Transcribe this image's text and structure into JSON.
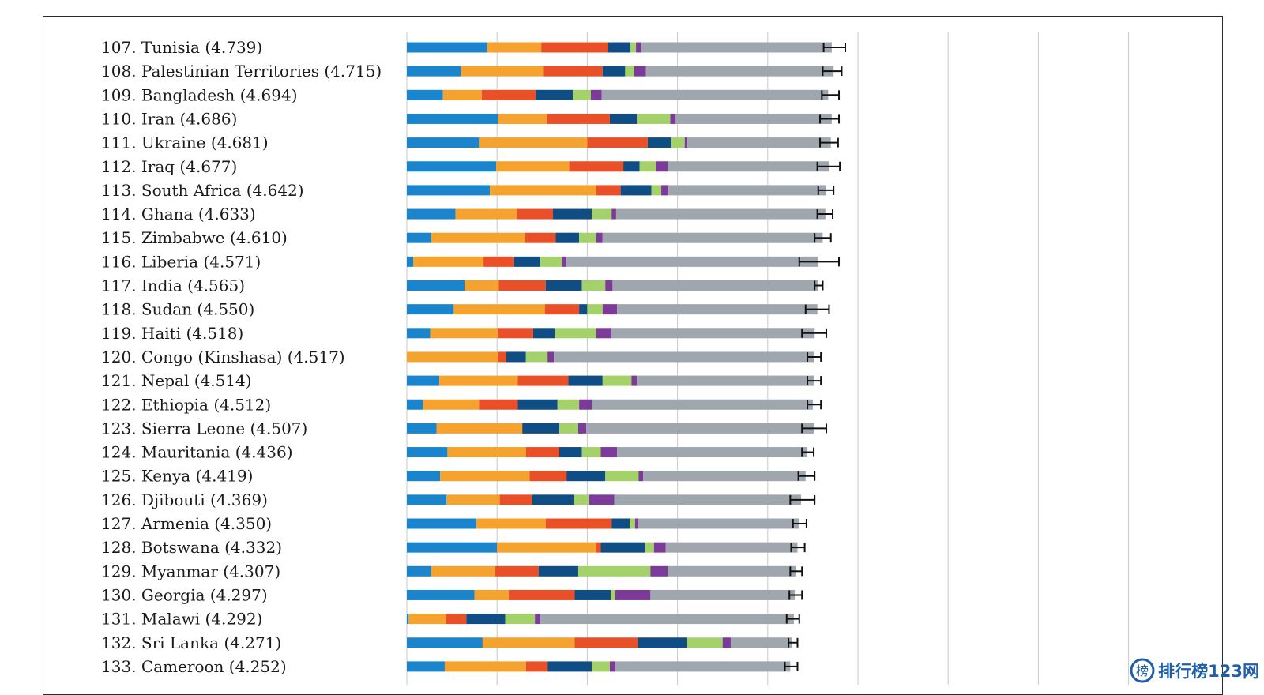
{
  "chart_data": {
    "type": "bar",
    "stacked": true,
    "orientation": "horizontal",
    "error_bars": true,
    "grid": true,
    "xlim": [
      0,
      8
    ],
    "colors": [
      "#1a85cc",
      "#f5a22e",
      "#ea5028",
      "#0f4d84",
      "#a5d16a",
      "#7d3b99",
      "#9fa6ad"
    ],
    "rows": [
      {
        "label": "107.  Tunisia (4.739)",
        "segments": [
          0.89,
          0.6,
          0.74,
          0.25,
          0.06,
          0.06,
          2.11
        ],
        "ci": [
          4.62,
          4.86
        ]
      },
      {
        "label": "108.  Palestinian Territories (4.715)",
        "segments": [
          0.6,
          0.91,
          0.66,
          0.25,
          0.1,
          0.13,
          2.08
        ],
        "ci": [
          4.61,
          4.82
        ]
      },
      {
        "label": "109.  Bangladesh (4.694)",
        "segments": [
          0.4,
          0.43,
          0.6,
          0.41,
          0.2,
          0.12,
          2.51
        ],
        "ci": [
          4.6,
          4.79
        ]
      },
      {
        "label": "110.  Iran (4.686)",
        "segments": [
          1.01,
          0.54,
          0.7,
          0.3,
          0.37,
          0.06,
          1.73
        ],
        "ci": [
          4.58,
          4.79
        ]
      },
      {
        "label": "111.  Ukraine (4.681)",
        "segments": [
          0.8,
          1.2,
          0.67,
          0.26,
          0.15,
          0.03,
          1.59
        ],
        "ci": [
          4.58,
          4.78
        ]
      },
      {
        "label": "112.  Iraq (4.677)",
        "segments": [
          0.99,
          0.81,
          0.6,
          0.18,
          0.18,
          0.13,
          1.79
        ],
        "ci": [
          4.55,
          4.8
        ]
      },
      {
        "label": "113.  South Africa (4.642)",
        "segments": [
          0.92,
          1.18,
          0.27,
          0.34,
          0.11,
          0.08,
          1.75
        ],
        "ci": [
          4.56,
          4.73
        ]
      },
      {
        "label": "114.  Ghana (4.633)",
        "segments": [
          0.54,
          0.68,
          0.4,
          0.43,
          0.22,
          0.05,
          2.32
        ],
        "ci": [
          4.55,
          4.72
        ]
      },
      {
        "label": "115.  Zimbabwe (4.610)",
        "segments": [
          0.27,
          1.04,
          0.34,
          0.26,
          0.19,
          0.07,
          2.44
        ],
        "ci": [
          4.52,
          4.7
        ]
      },
      {
        "label": "116.  Liberia (4.571)",
        "segments": [
          0.07,
          0.78,
          0.34,
          0.29,
          0.24,
          0.05,
          2.79
        ],
        "ci": [
          4.35,
          4.79
        ]
      },
      {
        "label": "117.  India (4.565)",
        "segments": [
          0.64,
          0.38,
          0.52,
          0.4,
          0.26,
          0.08,
          2.28
        ],
        "ci": [
          4.52,
          4.61
        ]
      },
      {
        "label": "118.  Sudan (4.550)",
        "segments": [
          0.52,
          1.01,
          0.38,
          0.09,
          0.17,
          0.16,
          2.22
        ],
        "ci": [
          4.42,
          4.68
        ]
      },
      {
        "label": "119.  Haiti (4.518)",
        "segments": [
          0.26,
          0.75,
          0.39,
          0.24,
          0.46,
          0.17,
          2.25
        ],
        "ci": [
          4.38,
          4.65
        ]
      },
      {
        "label": "120.  Congo (Kinshasa) (4.517)",
        "segments": [
          1.01,
          0.09,
          0.22,
          0.24,
          0.07,
          2.88
        ],
        "ci": [
          4.44,
          4.59
        ],
        "colors": [
          "#f5a22e",
          "#ea5028",
          "#0f4d84",
          "#a5d16a",
          "#7d3b99",
          "#9fa6ad"
        ]
      },
      {
        "label": "121.  Nepal (4.514)",
        "segments": [
          0.36,
          0.87,
          0.56,
          0.38,
          0.32,
          0.06,
          1.96
        ],
        "ci": [
          4.44,
          4.59
        ]
      },
      {
        "label": "122.  Ethiopia (4.512)",
        "segments": [
          0.18,
          0.62,
          0.43,
          0.44,
          0.24,
          0.14,
          2.45
        ],
        "ci": [
          4.44,
          4.59
        ]
      },
      {
        "label": "123.  Sierra Leone (4.507)",
        "segments": [
          0.33,
          0.95,
          0.41,
          0.21,
          0.09,
          2.52
        ],
        "ci": [
          4.38,
          4.65
        ],
        "colors": [
          "#1a85cc",
          "#f5a22e",
          "#0f4d84",
          "#a5d16a",
          "#7d3b99",
          "#9fa6ad"
        ]
      },
      {
        "label": "124.  Mauritania (4.436)",
        "segments": [
          0.45,
          0.87,
          0.37,
          0.25,
          0.21,
          0.18,
          2.11
        ],
        "ci": [
          4.38,
          4.51
        ]
      },
      {
        "label": "125.  Kenya (4.419)",
        "segments": [
          0.37,
          0.99,
          0.41,
          0.43,
          0.37,
          0.05,
          1.8
        ],
        "ci": [
          4.34,
          4.52
        ]
      },
      {
        "label": "126.  Djibouti (4.369)",
        "segments": [
          0.44,
          0.59,
          0.36,
          0.46,
          0.17,
          0.28,
          2.07
        ],
        "ci": [
          4.25,
          4.52
        ]
      },
      {
        "label": "127.  Armenia (4.350)",
        "segments": [
          0.77,
          0.77,
          0.73,
          0.2,
          0.06,
          0.03,
          1.79
        ],
        "ci": [
          4.28,
          4.43
        ]
      },
      {
        "label": "128.  Botswana (4.332)",
        "segments": [
          1.0,
          1.1,
          0.05,
          0.49,
          0.1,
          0.13,
          1.46
        ],
        "ci": [
          4.26,
          4.41
        ]
      },
      {
        "label": "129.  Myanmar (4.307)",
        "segments": [
          0.27,
          0.71,
          0.48,
          0.44,
          0.8,
          0.19,
          1.42
        ],
        "ci": [
          4.25,
          4.38
        ]
      },
      {
        "label": "130.  Georgia (4.297)",
        "segments": [
          0.75,
          0.38,
          0.73,
          0.4,
          0.05,
          0.39,
          1.6
        ],
        "ci": [
          4.24,
          4.38
        ]
      },
      {
        "label": "131.  Malawi (4.292)",
        "segments": [
          0.02,
          0.41,
          0.23,
          0.43,
          0.33,
          0.06,
          2.81
        ],
        "ci": [
          4.21,
          4.35
        ]
      },
      {
        "label": "132.  Sri Lanka (4.271)",
        "segments": [
          0.84,
          1.02,
          0.7,
          0.54,
          0.4,
          0.09,
          0.68
        ],
        "ci": [
          4.23,
          4.33
        ]
      },
      {
        "label": "133.  Cameroon (4.252)",
        "segments": [
          0.42,
          0.9,
          0.24,
          0.49,
          0.2,
          0.06,
          1.94
        ],
        "ci": [
          4.19,
          4.33
        ]
      }
    ]
  },
  "watermark": {
    "text": "排行榜123网",
    "logo_char": "榜"
  }
}
